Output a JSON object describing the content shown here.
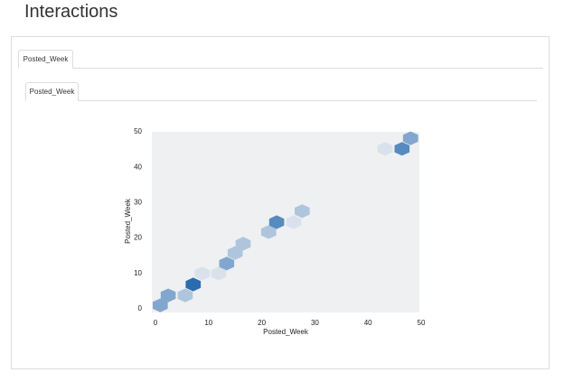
{
  "header": {
    "title": "Interactions"
  },
  "tabs": {
    "outer": "Posted_Week",
    "inner": "Posted_Week"
  },
  "chart_data": {
    "type": "hexbin",
    "x_label": "Posted_Week",
    "y_label": "Posted_Week",
    "x": [
      0.9,
      2.4,
      5.6,
      7.1,
      8.8,
      11.9,
      13.4,
      15,
      16.5,
      21.3,
      22.8,
      26,
      27.6,
      43.2,
      46.4,
      48
    ],
    "y": [
      1,
      3.8,
      3.8,
      6.9,
      10,
      10,
      12.8,
      15.8,
      18.4,
      21.7,
      24.5,
      24.5,
      27.6,
      45.2,
      45.2,
      48.2
    ],
    "values": [
      3,
      3,
      2,
      5,
      1,
      1,
      3,
      2,
      2,
      2,
      4,
      1,
      2,
      1,
      4,
      3
    ],
    "colors": [
      "#d9e2ec",
      "#2b6cb0"
    ],
    "xlim": [
      0,
      50
    ],
    "ylim": [
      0,
      50
    ],
    "xticks": [
      0,
      10,
      20,
      30,
      40,
      50
    ],
    "yticks": [
      0,
      10,
      20,
      30,
      40,
      50
    ]
  }
}
